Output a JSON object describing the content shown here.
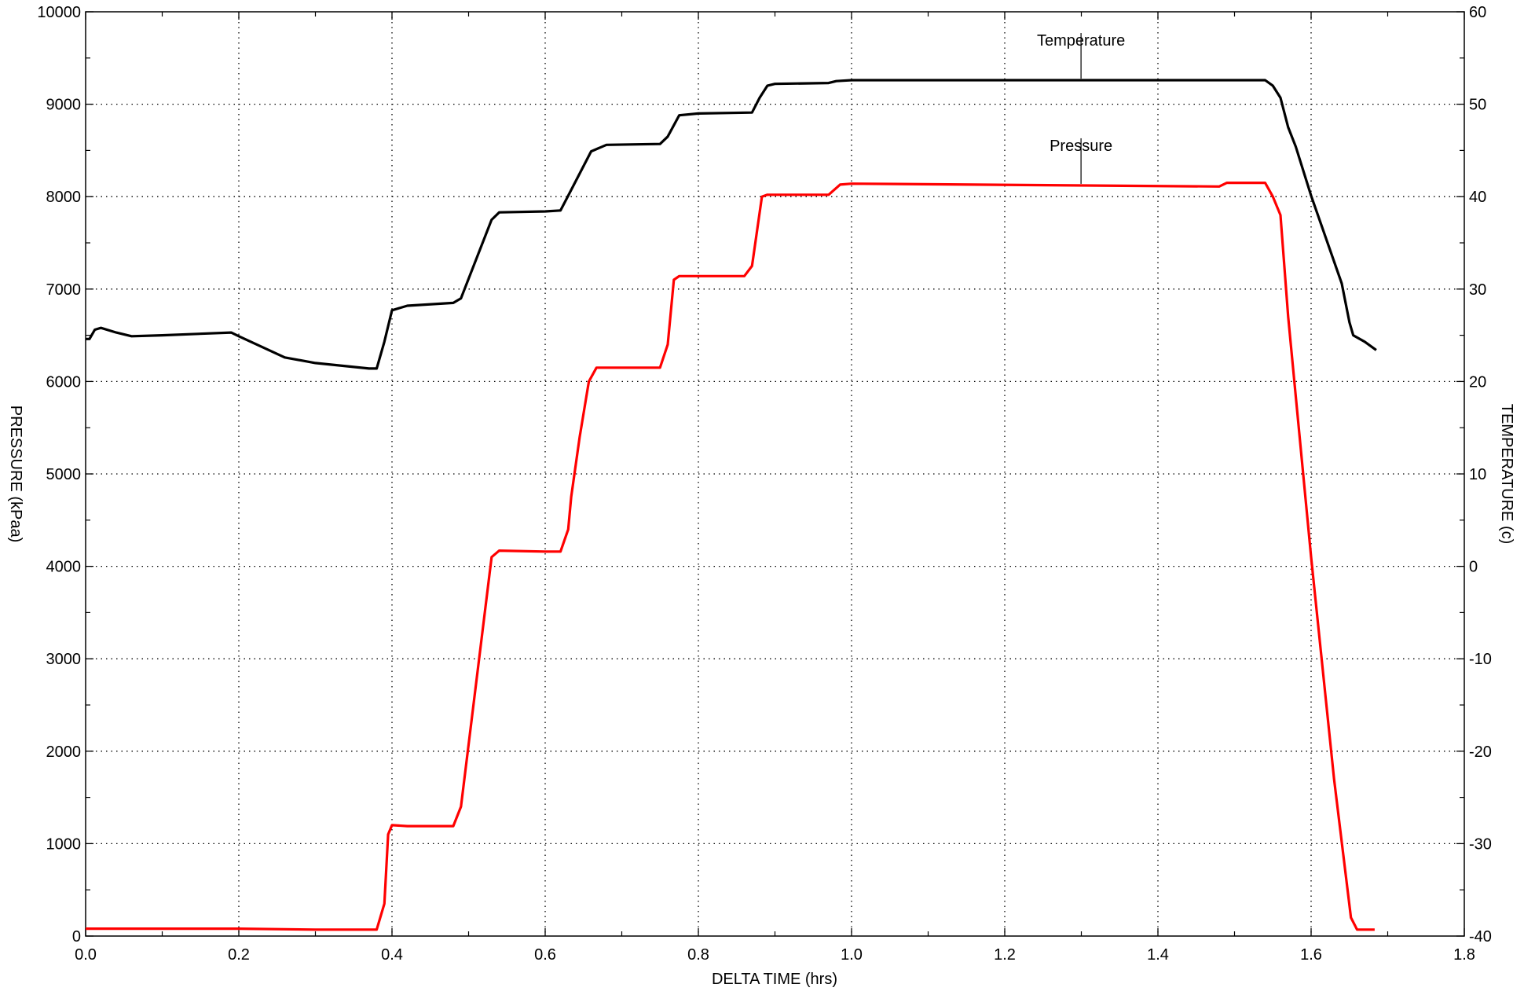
{
  "chart_data": {
    "type": "line",
    "xlabel": "DELTA TIME (hrs)",
    "ylabel": "PRESSURE (kPaa)",
    "y2label": "TEMPERATURE (c)",
    "xlim": [
      0,
      1.8
    ],
    "xticks": [
      {
        "value": 0,
        "label": "0.0"
      },
      0.2,
      0.4,
      0.6,
      0.8,
      {
        "value": 1,
        "label": "1.0"
      },
      1.2,
      1.4,
      1.6,
      1.8
    ],
    "ylim": [
      0,
      10000
    ],
    "yticks": [
      0,
      1000,
      2000,
      3000,
      4000,
      5000,
      6000,
      7000,
      8000,
      9000,
      10000
    ],
    "y2lim": [
      -40,
      60
    ],
    "y2ticks": [
      -40,
      -30,
      -20,
      -10,
      0,
      10,
      20,
      30,
      40,
      50,
      60
    ],
    "grid": true,
    "series": [
      {
        "name": "Temperature",
        "color": "#000000",
        "axis": "y2",
        "x": [
          0.0,
          0.005,
          0.012,
          0.02,
          0.04,
          0.06,
          0.1,
          0.19,
          0.2,
          0.26,
          0.3,
          0.37,
          0.38,
          0.39,
          0.4,
          0.42,
          0.48,
          0.49,
          0.53,
          0.54,
          0.6,
          0.62,
          0.63,
          0.66,
          0.68,
          0.75,
          0.76,
          0.775,
          0.8,
          0.87,
          0.88,
          0.89,
          0.9,
          0.97,
          0.98,
          1.0,
          1.54,
          1.55,
          1.56,
          1.57,
          1.58,
          1.6,
          1.64,
          1.65,
          1.655,
          1.67,
          1.685
        ],
        "values": [
          24.6,
          24.6,
          25.6,
          25.8,
          25.3,
          24.9,
          25.0,
          25.3,
          24.9,
          22.6,
          22.0,
          21.4,
          21.4,
          24.3,
          27.7,
          28.2,
          28.5,
          29.0,
          37.5,
          38.3,
          38.4,
          38.5,
          40.1,
          44.9,
          45.6,
          45.7,
          46.5,
          48.8,
          49.0,
          49.1,
          50.7,
          52.0,
          52.2,
          52.3,
          52.5,
          52.6,
          52.6,
          52.0,
          50.7,
          47.5,
          45.4,
          40.1,
          30.6,
          26.4,
          25.0,
          24.3,
          23.4
        ]
      },
      {
        "name": "Pressure",
        "color": "#ff0000",
        "axis": "y",
        "x": [
          0.0,
          0.1,
          0.2,
          0.3,
          0.38,
          0.39,
          0.395,
          0.4,
          0.42,
          0.48,
          0.49,
          0.53,
          0.54,
          0.6,
          0.62,
          0.63,
          0.634,
          0.645,
          0.657,
          0.667,
          0.75,
          0.76,
          0.768,
          0.775,
          0.86,
          0.87,
          0.883,
          0.89,
          0.97,
          0.985,
          1.0,
          1.48,
          1.49,
          1.54,
          1.55,
          1.56,
          1.57,
          1.6,
          1.63,
          1.652,
          1.66,
          1.683
        ],
        "values": [
          80,
          80,
          80,
          70,
          70,
          350,
          1100,
          1200,
          1190,
          1190,
          1400,
          4100,
          4170,
          4160,
          4160,
          4400,
          4750,
          5400,
          6000,
          6150,
          6150,
          6400,
          7100,
          7140,
          7140,
          7250,
          8000,
          8020,
          8020,
          8130,
          8140,
          8110,
          8150,
          8150,
          8000,
          7800,
          6700,
          4100,
          1700,
          200,
          70,
          70
        ]
      }
    ]
  }
}
